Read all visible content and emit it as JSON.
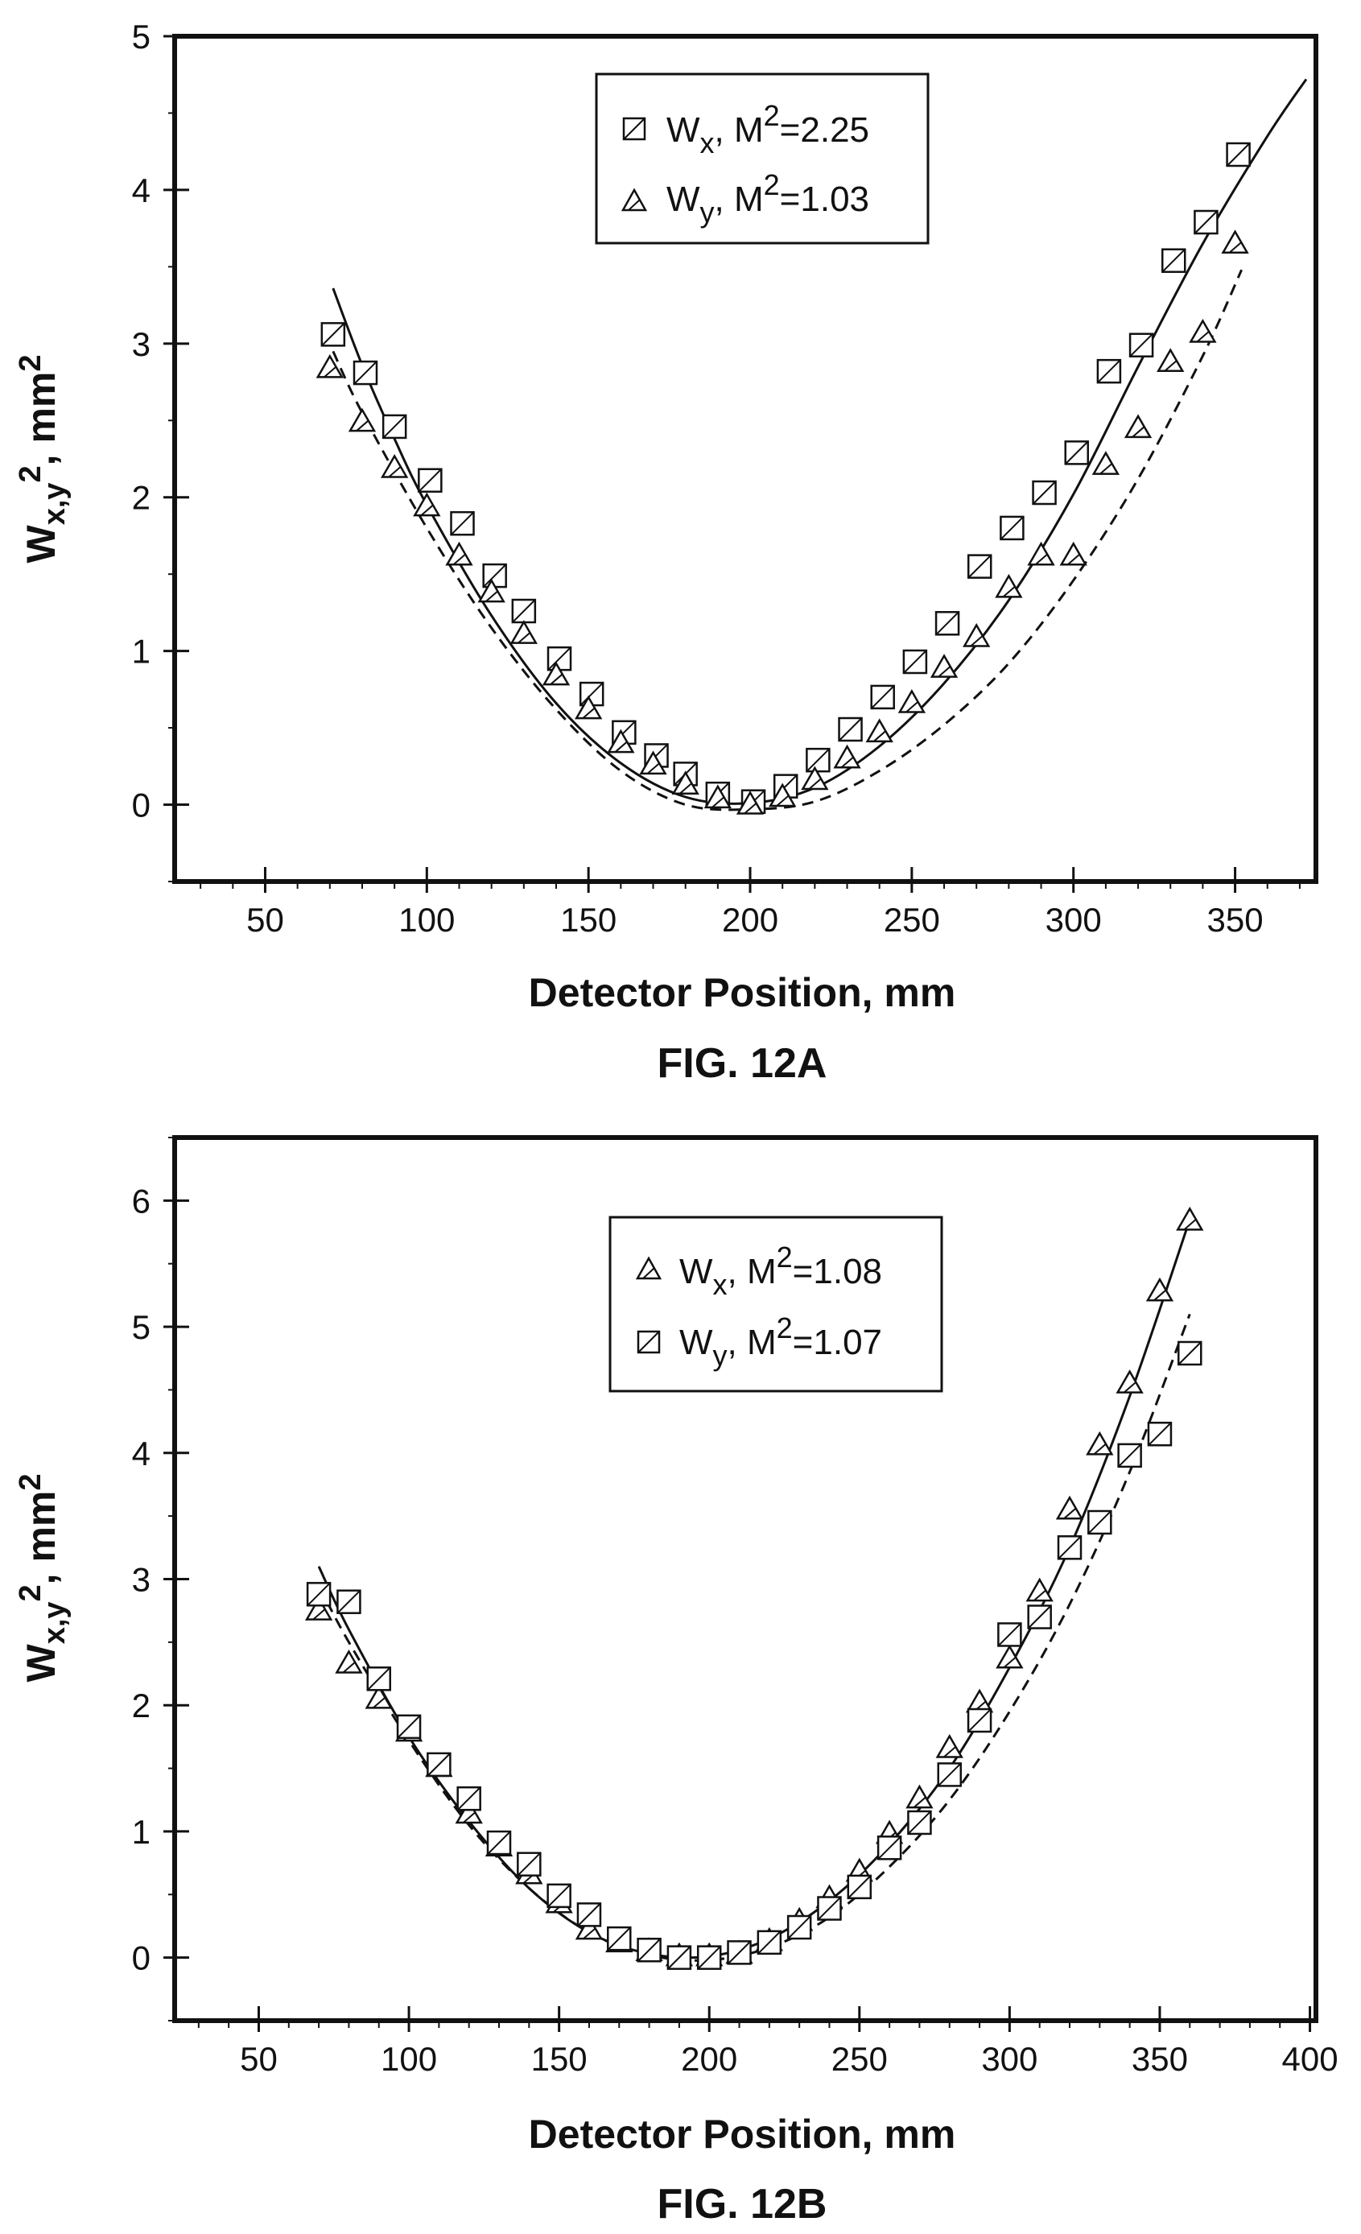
{
  "charts": [
    {
      "id": "fig12a",
      "caption": "FIG. 12A",
      "xlabel": "Detector Position, mm",
      "ylabel_main": "W",
      "ylabel_sub": "x,y",
      "ylabel_sup": "2",
      "ylabel_tail": ", mm",
      "ylabel_tail_sup": "2",
      "legend": [
        {
          "marker": "square",
          "name": "W",
          "sub": "x",
          "mid": ", M",
          "sup": "2",
          "tail": "=2.25"
        },
        {
          "marker": "triangle",
          "name": "W",
          "sub": "y",
          "mid": ", M",
          "sup": "2",
          "tail": "=1.03"
        }
      ]
    },
    {
      "id": "fig12b",
      "caption": "FIG. 12B",
      "xlabel": "Detector Position, mm",
      "ylabel_main": "W",
      "ylabel_sub": "x,y",
      "ylabel_sup": "2",
      "ylabel_tail": ", mm",
      "ylabel_tail_sup": "2",
      "legend": [
        {
          "marker": "triangle",
          "name": "W",
          "sub": "x",
          "mid": ", M",
          "sup": "2",
          "tail": "=1.08"
        },
        {
          "marker": "square",
          "name": "W",
          "sub": "y",
          "mid": ", M",
          "sup": "2",
          "tail": "=1.07"
        }
      ]
    }
  ],
  "chart_data": [
    {
      "type": "scatter",
      "title": "FIG. 12A",
      "xlabel": "Detector Position, mm",
      "ylabel": "Wx,y2, mm2",
      "xlim": [
        22,
        375
      ],
      "ylim": [
        -0.5,
        5
      ],
      "xticks": [
        50,
        100,
        150,
        200,
        250,
        300,
        350
      ],
      "yticks": [
        0,
        1,
        2,
        3,
        4,
        5
      ],
      "legend_position": "top-center",
      "grid": false,
      "series": [
        {
          "name": "Wx, M2=2.25",
          "marker": "square",
          "x": [
            71,
            81,
            90,
            101,
            111,
            121,
            130,
            141,
            151,
            161,
            171,
            180,
            190,
            201,
            211,
            221,
            231,
            241,
            251,
            261,
            271,
            281,
            291,
            301,
            311,
            321,
            331,
            341,
            351
          ],
          "y": [
            3.06,
            2.81,
            2.46,
            2.11,
            1.83,
            1.49,
            1.26,
            0.95,
            0.72,
            0.47,
            0.32,
            0.2,
            0.07,
            0.02,
            0.12,
            0.29,
            0.49,
            0.7,
            0.93,
            1.18,
            1.55,
            1.8,
            2.03,
            2.29,
            2.82,
            2.99,
            3.54,
            3.79,
            4.23
          ]
        },
        {
          "name": "Wy, M2=1.03",
          "marker": "triangle",
          "x": [
            70,
            80,
            90,
            100,
            110,
            120,
            130,
            140,
            150,
            160,
            170,
            180,
            190,
            200,
            210,
            220,
            230,
            240,
            250,
            260,
            270,
            280,
            290,
            300,
            310,
            320,
            330,
            340,
            350
          ],
          "y": [
            2.84,
            2.49,
            2.19,
            1.94,
            1.62,
            1.38,
            1.11,
            0.84,
            0.62,
            0.4,
            0.26,
            0.13,
            0.04,
            0.0,
            0.05,
            0.16,
            0.3,
            0.47,
            0.66,
            0.89,
            1.09,
            1.41,
            1.62,
            1.62,
            2.21,
            2.45,
            2.88,
            3.07,
            3.65
          ]
        },
        {
          "name": "fit (solid)",
          "line": "solid",
          "x": [
            71,
            80,
            90,
            100,
            120,
            140,
            160,
            180,
            200,
            220,
            240,
            260,
            280,
            300,
            320,
            340,
            360,
            372
          ],
          "y": [
            3.36,
            2.86,
            2.38,
            1.95,
            1.23,
            0.66,
            0.27,
            0.05,
            0.01,
            0.11,
            0.38,
            0.79,
            1.33,
            2.02,
            2.85,
            3.65,
            4.35,
            4.72
          ]
        },
        {
          "name": "fit (dashed)",
          "line": "dashed",
          "x": [
            71,
            80,
            100,
            120,
            140,
            160,
            180,
            200,
            220,
            240,
            260,
            280,
            300,
            320,
            340,
            352
          ],
          "y": [
            2.95,
            2.55,
            1.8,
            1.15,
            0.62,
            0.22,
            0.0,
            -0.03,
            0.02,
            0.22,
            0.52,
            0.92,
            1.46,
            2.12,
            2.92,
            3.48
          ]
        }
      ]
    },
    {
      "type": "scatter",
      "title": "FIG. 12B",
      "xlabel": "Detector Position, mm",
      "ylabel": "Wx,y2, mm2",
      "xlim": [
        22,
        402
      ],
      "ylim": [
        -0.5,
        6.5
      ],
      "xticks": [
        50,
        100,
        150,
        200,
        250,
        300,
        350,
        400
      ],
      "yticks": [
        0,
        1,
        2,
        3,
        4,
        5,
        6
      ],
      "legend_position": "top-right",
      "grid": false,
      "series": [
        {
          "name": "Wx, M2=1.08",
          "marker": "triangle",
          "x": [
            70,
            80,
            90,
            100,
            110,
            120,
            130,
            140,
            150,
            160,
            170,
            180,
            190,
            200,
            210,
            220,
            230,
            240,
            250,
            260,
            270,
            280,
            290,
            300,
            310,
            320,
            330,
            340,
            350,
            360
          ],
          "y": [
            2.75,
            2.33,
            2.05,
            1.79,
            1.51,
            1.14,
            0.88,
            0.66,
            0.43,
            0.22,
            0.12,
            0.05,
            0.01,
            0.01,
            0.03,
            0.13,
            0.29,
            0.47,
            0.68,
            0.98,
            1.26,
            1.66,
            2.02,
            2.37,
            2.9,
            3.55,
            4.06,
            4.55,
            5.28,
            5.84
          ]
        },
        {
          "name": "Wy, M2=1.07",
          "marker": "square",
          "x": [
            70,
            80,
            90,
            100,
            110,
            120,
            130,
            140,
            150,
            160,
            170,
            180,
            190,
            200,
            210,
            220,
            230,
            240,
            250,
            260,
            270,
            280,
            290,
            300,
            310,
            320,
            330,
            340,
            350,
            360
          ],
          "y": [
            2.88,
            2.82,
            2.21,
            1.83,
            1.53,
            1.26,
            0.91,
            0.74,
            0.49,
            0.34,
            0.15,
            0.06,
            0.0,
            0.0,
            0.04,
            0.12,
            0.24,
            0.39,
            0.56,
            0.87,
            1.07,
            1.45,
            1.88,
            2.56,
            2.7,
            3.25,
            3.45,
            3.98,
            4.15,
            4.79
          ]
        },
        {
          "name": "fit (solid)",
          "line": "solid",
          "x": [
            70,
            80,
            100,
            120,
            140,
            160,
            180,
            200,
            220,
            240,
            260,
            280,
            300,
            320,
            340,
            360
          ],
          "y": [
            3.1,
            2.6,
            1.75,
            1.08,
            0.55,
            0.2,
            0.03,
            0.01,
            0.15,
            0.45,
            0.9,
            1.5,
            2.3,
            3.25,
            4.45,
            5.85
          ]
        },
        {
          "name": "fit (dashed)",
          "line": "dashed",
          "x": [
            70,
            80,
            100,
            120,
            140,
            160,
            180,
            200,
            220,
            240,
            260,
            280,
            300,
            320,
            340,
            360
          ],
          "y": [
            2.95,
            2.5,
            1.72,
            1.05,
            0.55,
            0.2,
            0.02,
            -0.02,
            0.08,
            0.32,
            0.72,
            1.25,
            1.95,
            2.8,
            3.85,
            5.1
          ]
        }
      ]
    }
  ]
}
